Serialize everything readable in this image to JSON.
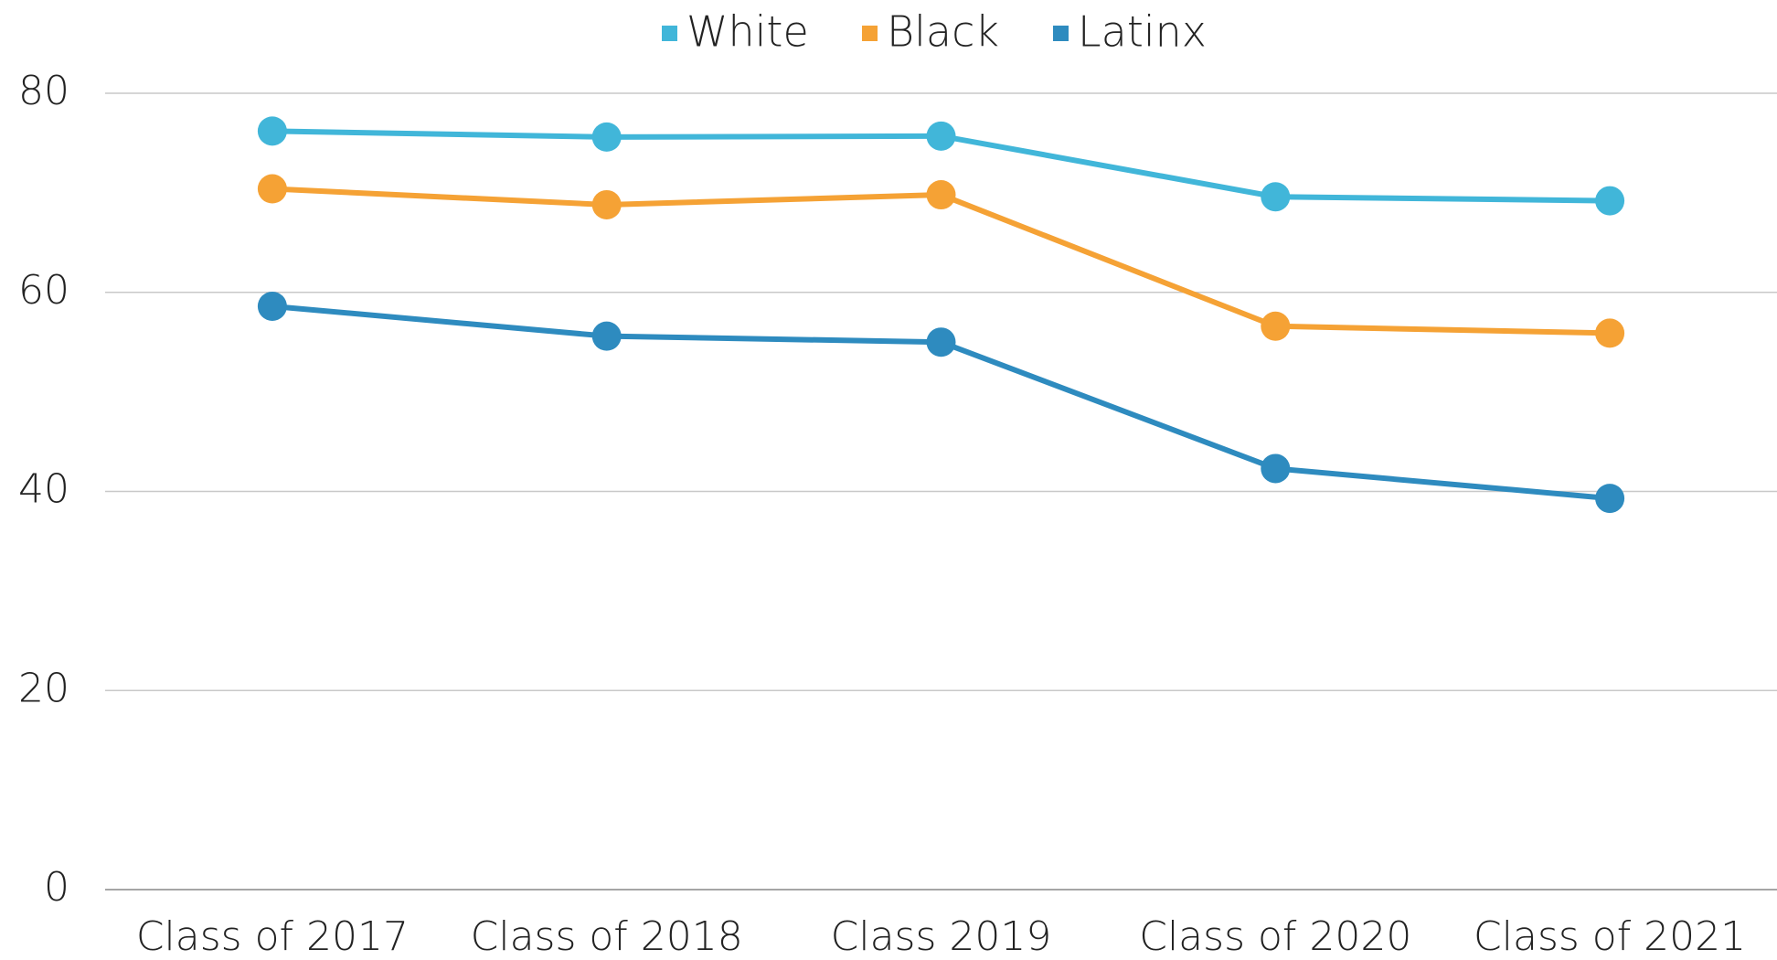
{
  "chart_data": {
    "type": "line",
    "categories": [
      "Class of 2017",
      "Class of 2018",
      "Class 2019",
      "Class of 2020",
      "Class of 2021"
    ],
    "series": [
      {
        "name": "White",
        "color": "#41b6d9",
        "values": [
          76.2,
          75.6,
          75.7,
          69.6,
          69.2
        ]
      },
      {
        "name": "Black",
        "color": "#f5a235",
        "values": [
          70.4,
          68.8,
          69.8,
          56.6,
          55.9
        ]
      },
      {
        "name": "Latinx",
        "color": "#2e8bbf",
        "values": [
          58.6,
          55.6,
          55.0,
          42.3,
          39.3
        ]
      }
    ],
    "ylim": [
      0,
      80
    ],
    "yticks": [
      0,
      20,
      40,
      60,
      80
    ],
    "grid": true,
    "legend": "top"
  }
}
